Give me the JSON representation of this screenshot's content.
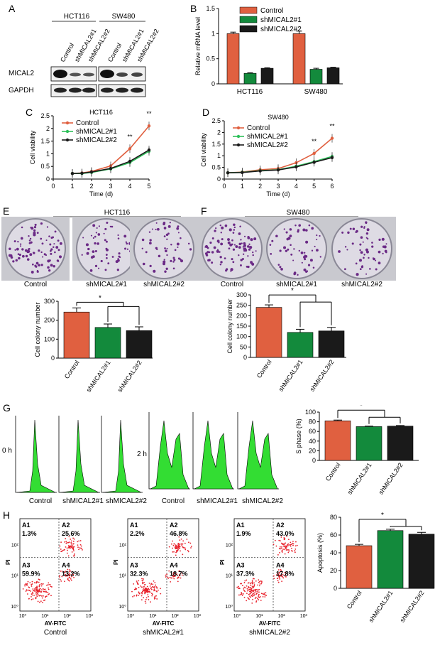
{
  "panel_letters": [
    "A",
    "B",
    "C",
    "D",
    "E",
    "F",
    "G",
    "H"
  ],
  "panelA": {
    "cell_lines": [
      "HCT116",
      "SW480"
    ],
    "lanes": [
      "Control",
      "shMICAL2#1",
      "shMICAL2#2",
      "Control",
      "shMICAL2#1",
      "shMICAL2#2"
    ],
    "rows": [
      "MICAL2",
      "GAPDH"
    ]
  },
  "legend_labels": [
    "Control",
    "shMICAL2#1",
    "shMICAL2#2"
  ],
  "group_labels": [
    "Control",
    "shMICAL2#1",
    "shMICAL2#2"
  ],
  "cell_lines": [
    "HCT116",
    "SW480"
  ],
  "colors": {
    "control": "#e06040",
    "sh1": "#138a3c",
    "sh2": "#1a1a1a",
    "line_sh1": "#2ec05a",
    "hist_fill": "#33dd33"
  },
  "sig_mark": "*",
  "sig_double": "**",
  "panelG": {
    "time_0": "0 h",
    "time_2": "2 h"
  },
  "panelH": {
    "quadrants": [
      "A1",
      "A2",
      "A3",
      "A4"
    ],
    "x_axis_label": "AV-FITC",
    "y_axis_label": "PI",
    "tick_labels": [
      "10⁰",
      "10¹",
      "10²",
      "10³"
    ],
    "plots": [
      {
        "label": "Control",
        "a1": "1.3%",
        "a2": "25.6%",
        "a3": "59.9%",
        "a4": "13.2%"
      },
      {
        "label": "shMICAL2#1",
        "a1": "2.2%",
        "a2": "46.8%",
        "a3": "32.3%",
        "a4": "18.7%"
      },
      {
        "label": "shMICAL2#2",
        "a1": "1.9%",
        "a2": "43.0%",
        "a3": "37.3%",
        "a4": "17.8%"
      }
    ]
  },
  "chart_data": [
    {
      "panel": "B",
      "type": "bar",
      "ylabel": "Relative mRNA level",
      "ylim": [
        0,
        1.5
      ],
      "yticks": [
        0,
        0.5,
        1.0,
        1.5
      ],
      "categories": [
        "HCT116",
        "SW480"
      ],
      "series": [
        {
          "name": "Control",
          "values": [
            1.0,
            1.0
          ],
          "err": [
            0.03,
            0.05
          ]
        },
        {
          "name": "shMICAL2#1",
          "values": [
            0.21,
            0.29
          ],
          "err": [
            0.01,
            0.02
          ]
        },
        {
          "name": "shMICAL2#2",
          "values": [
            0.31,
            0.32
          ],
          "err": [
            0.01,
            0.01
          ]
        }
      ]
    },
    {
      "panel": "C",
      "type": "line",
      "title": "HCT116",
      "xlabel": "Time (d)",
      "ylabel": "Cell viability",
      "xlim": [
        0,
        5
      ],
      "ylim": [
        0,
        2.5
      ],
      "yticks": [
        0,
        0.5,
        1.0,
        1.5,
        2.0,
        2.5
      ],
      "x": [
        1,
        1.5,
        2,
        3,
        4,
        5
      ],
      "series": [
        {
          "name": "Control",
          "values": [
            0.22,
            0.24,
            0.3,
            0.52,
            1.2,
            2.1
          ]
        },
        {
          "name": "shMICAL2#1",
          "values": [
            0.22,
            0.22,
            0.26,
            0.4,
            0.65,
            1.1
          ]
        },
        {
          "name": "shMICAL2#2",
          "values": [
            0.22,
            0.23,
            0.28,
            0.42,
            0.7,
            1.15
          ]
        }
      ],
      "annotations": [
        {
          "x": 4,
          "text": "**"
        },
        {
          "x": 5,
          "text": "**"
        }
      ]
    },
    {
      "panel": "D",
      "type": "line",
      "title": "SW480",
      "xlabel": "Time (d)",
      "ylabel": "Cell viability",
      "xlim": [
        0,
        6
      ],
      "ylim": [
        0,
        2.5
      ],
      "yticks": [
        0,
        0.5,
        1.0,
        1.5,
        2.0,
        2.5
      ],
      "x": [
        0.2,
        1,
        2,
        3,
        4,
        5,
        6
      ],
      "series": [
        {
          "name": "Control",
          "values": [
            0.27,
            0.3,
            0.4,
            0.45,
            0.7,
            1.1,
            1.75
          ]
        },
        {
          "name": "shMICAL2#1",
          "values": [
            0.27,
            0.29,
            0.36,
            0.4,
            0.55,
            0.75,
            0.97
          ]
        },
        {
          "name": "shMICAL2#2",
          "values": [
            0.27,
            0.28,
            0.35,
            0.39,
            0.52,
            0.72,
            0.92
          ]
        }
      ],
      "annotations": [
        {
          "x": 5,
          "text": "**"
        },
        {
          "x": 6,
          "text": "**"
        }
      ]
    },
    {
      "panel": "E",
      "type": "bar",
      "title": "HCT116",
      "ylabel": "Cell colony number",
      "ylim": [
        0,
        300
      ],
      "yticks": [
        0,
        100,
        200,
        300
      ],
      "categories": [
        "Control",
        "shMICAL2#1",
        "shMICAL2#2"
      ],
      "values": [
        243,
        162,
        145
      ],
      "err": [
        22,
        18,
        20
      ]
    },
    {
      "panel": "F",
      "type": "bar",
      "title": "SW480",
      "ylabel": "Cell colony number",
      "ylim": [
        0,
        300
      ],
      "yticks": [
        0,
        50,
        100,
        150,
        200,
        250,
        300
      ],
      "categories": [
        "Control",
        "shMICAL2#1",
        "shMICAL2#2"
      ],
      "values": [
        240,
        120,
        127
      ],
      "err": [
        12,
        15,
        17
      ]
    },
    {
      "panel": "G",
      "type": "bar",
      "ylabel": "S phase (%)",
      "ylim": [
        0,
        100
      ],
      "yticks": [
        0,
        20,
        40,
        60,
        80,
        100
      ],
      "categories": [
        "Control",
        "shMICAL2#1",
        "shMICAL2#2"
      ],
      "values": [
        82,
        70,
        71
      ],
      "err": [
        1.5,
        1,
        1.2
      ]
    },
    {
      "panel": "H",
      "type": "bar",
      "ylabel": "Apoptosis (%)",
      "ylim": [
        0,
        80
      ],
      "yticks": [
        0,
        20,
        40,
        60,
        80
      ],
      "categories": [
        "Control",
        "shMICAL2#1",
        "shMICAL2#2"
      ],
      "values": [
        48,
        65,
        61
      ],
      "err": [
        1.5,
        1.5,
        2
      ]
    }
  ]
}
